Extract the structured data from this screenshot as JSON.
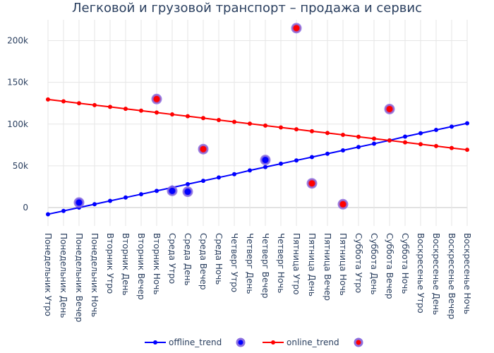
{
  "chart_data": {
    "type": "line",
    "title": "Легковой и грузовой транспорт – продажа и сервис",
    "xlabel": "",
    "ylabel": "",
    "categories": [
      "Понедельник Утро",
      "Понедельник День",
      "Понедельник Вечер",
      "Понедельник Ночь",
      "Вторник Утро",
      "Вторник День",
      "Вторник Вечер",
      "Вторник Ночь",
      "Среда Утро",
      "Среда День",
      "Среда Вечер",
      "Среда Ночь",
      "Четверг Утро",
      "Четверг День",
      "Четверг Вечер",
      "Четверг Ночь",
      "Пятница Утро",
      "Пятница День",
      "Пятница Вечер",
      "Пятница Ночь",
      "Суббота Утро",
      "Суббота День",
      "Суббота Вечер",
      "Суббота Ночь",
      "Воскресенье Утро",
      "Воскресенье День",
      "Воскресенье Вечер",
      "Воскресенье Ночь"
    ],
    "ylim": [
      -22000,
      225000
    ],
    "y_ticks": [
      0,
      50000,
      100000,
      150000,
      200000
    ],
    "y_tick_labels": [
      "0",
      "50k",
      "100k",
      "150k",
      "200k"
    ],
    "grid": true,
    "legend_position": "bottom-center",
    "series": [
      {
        "name": "offline_trend",
        "mode": "lines+markers",
        "color": "#0000ff",
        "values": [
          -8000,
          -4000,
          0,
          4000,
          8000,
          12000,
          16000,
          20000,
          24000,
          28000,
          32000,
          36000,
          40000,
          44500,
          48500,
          52500,
          56500,
          60500,
          64500,
          68500,
          72500,
          76500,
          80500,
          85000,
          89000,
          93000,
          97000,
          101000
        ]
      },
      {
        "name": "",
        "mode": "markers",
        "color": "#0000ff",
        "halo_color": "#8c6fe0",
        "points": [
          {
            "category": "Понедельник Вечер",
            "value": 6000
          },
          {
            "category": "Среда Утро",
            "value": 20000
          },
          {
            "category": "Среда День",
            "value": 19000
          },
          {
            "category": "Четверг Вечер",
            "value": 57000
          }
        ]
      },
      {
        "name": "online_trend",
        "mode": "lines+markers",
        "color": "#ff0000",
        "values": [
          129500,
          127300,
          125000,
          122800,
          120600,
          118300,
          116100,
          113900,
          111600,
          109400,
          107200,
          104900,
          102700,
          100500,
          98200,
          96000,
          93800,
          91500,
          89300,
          87100,
          84800,
          82600,
          80400,
          78100,
          75900,
          73700,
          71400,
          69200
        ]
      },
      {
        "name": "",
        "mode": "markers",
        "color": "#ff0000",
        "halo_color": "#8c6fe0",
        "points": [
          {
            "category": "Вторник Ночь",
            "value": 130000
          },
          {
            "category": "Среда Вечер",
            "value": 70000
          },
          {
            "category": "Пятница Утро",
            "value": 215000
          },
          {
            "category": "Пятница День",
            "value": 29000
          },
          {
            "category": "Пятница Ночь",
            "value": 4000
          },
          {
            "category": "Суббота Вечер",
            "value": 118000
          }
        ]
      }
    ]
  }
}
